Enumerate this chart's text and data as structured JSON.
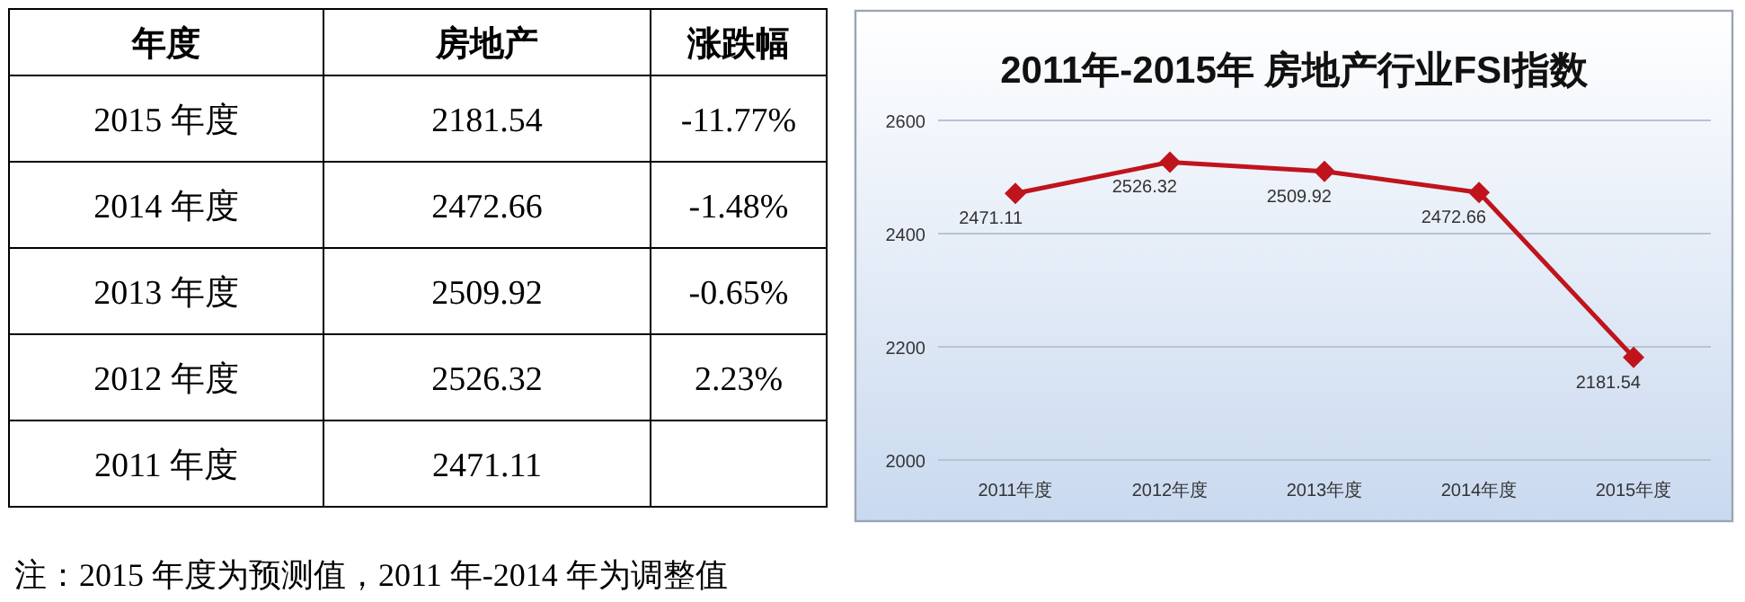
{
  "chart_data": [
    {
      "type": "heatmap",
      "ylabel": "年度",
      "categories": [
        "房地产",
        "涨跌幅"
      ],
      "y_categories": [
        "2015 年度",
        "2014 年度",
        "2013 年度",
        "2012 年度",
        "2011 年度"
      ],
      "cells": [
        [
          null,
          null
        ],
        [
          null,
          null
        ],
        [
          null,
          null
        ],
        [
          null,
          null
        ],
        [
          null,
          null
        ]
      ],
      "cell_labels": [
        [
          "2181.54",
          "-11.77%"
        ],
        [
          "2472.66",
          "-1.48%"
        ],
        [
          "2509.92",
          "-0.65%"
        ],
        [
          "2526.32",
          "2.23%"
        ],
        [
          "2471.11",
          null
        ]
      ],
      "annotations": [
        "注：2015 年度为预测值，2011 年-2014 年为调整值"
      ]
    },
    {
      "type": "line",
      "title": "2011年-2015年 房地产行业FSI指数",
      "categories": [
        "2011年度",
        "2012年度",
        "2013年度",
        "2014年度",
        "2015年度"
      ],
      "series": [
        {
          "color": "#c0141c",
          "values": [
            2471.11,
            2526.32,
            2509.92,
            2472.66,
            2181.54
          ]
        }
      ],
      "ylim": [
        2000,
        2600
      ],
      "yticks": [
        2000,
        2200,
        2400,
        2600
      ],
      "grid": "y",
      "marker": "diamond",
      "line_style": "solid",
      "data_labels": true
    }
  ]
}
